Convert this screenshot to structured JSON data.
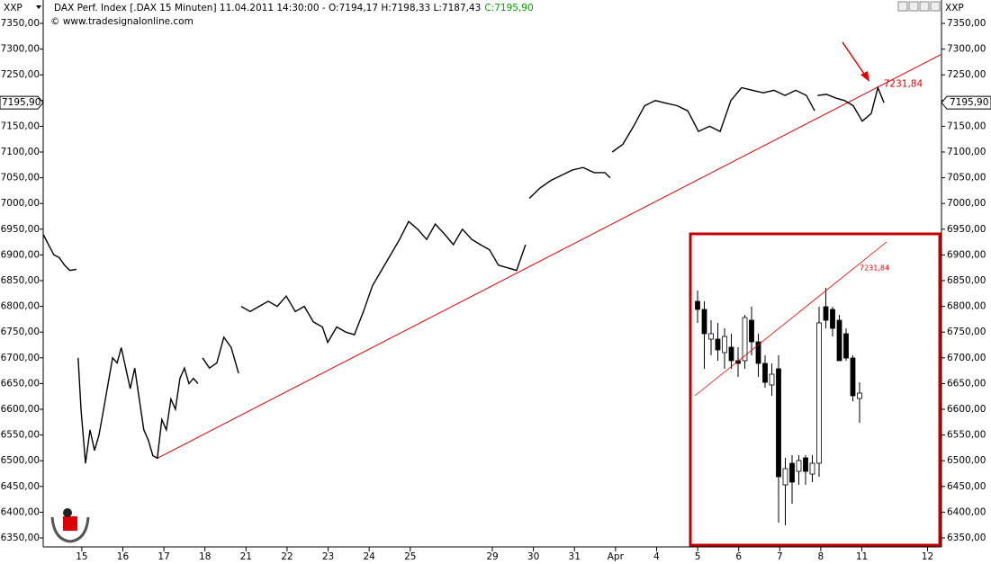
{
  "chart_data": {
    "type": "line",
    "symbol": "XXP",
    "title": "DAX Perf. Index [.DAX  15 Minuten] 11.04.2011 14:30:00 - O:7194,17 H:7198,33 L:7187,43",
    "close_label": "C:7195,90",
    "watermark": "© www.tradesignalonline.com",
    "color": "#000000",
    "x": [
      -0.94,
      -0.81,
      -0.68,
      -0.55,
      -0.42,
      -0.29,
      -0.13,
      null,
      -0.09,
      -0.02,
      0.09,
      0.2,
      0.31,
      0.42,
      0.53,
      0.64,
      0.75,
      0.86,
      0.96,
      1.07,
      1.18,
      1.29,
      1.4,
      1.51,
      1.62,
      1.73,
      1.84,
      1.95,
      2.06,
      2.17,
      2.28,
      2.39,
      2.5,
      2.61,
      2.72,
      2.83,
      null,
      2.94,
      3.11,
      3.29,
      3.46,
      3.64,
      3.82,
      null,
      3.88,
      4.1,
      4.32,
      4.54,
      4.76,
      4.98,
      5.2,
      5.42,
      5.64,
      5.86,
      5.99,
      6.21,
      6.43,
      6.64,
      6.86,
      7.08,
      7.3,
      7.52,
      7.74,
      7.96,
      8.18,
      8.4,
      8.61,
      8.84,
      9.05,
      9.27,
      9.5,
      9.71,
      9.93,
      10.15,
      10.37,
      10.59,
      10.81,
      null,
      10.9,
      11.16,
      11.43,
      11.69,
      11.95,
      12.21,
      12.48,
      12.74,
      12.87,
      null,
      12.92,
      13.18,
      13.44,
      13.71,
      13.97,
      14.23,
      14.5,
      14.76,
      15.02,
      15.29,
      15.55,
      15.81,
      16.07,
      16.34,
      16.6,
      16.86,
      17.13,
      17.39,
      17.65,
      17.85,
      null,
      17.92,
      18.14,
      18.36,
      18.58,
      18.79,
      19.01,
      19.23,
      19.39,
      19.54
    ],
    "values": [
      6940,
      6920,
      6900,
      6895,
      6880,
      6870,
      6872,
      null,
      6700,
      6600,
      6495,
      6560,
      6520,
      6550,
      6600,
      6650,
      6700,
      6690,
      6720,
      6680,
      6640,
      6680,
      6620,
      6560,
      6540,
      6510,
      6505,
      6580,
      6560,
      6620,
      6600,
      6660,
      6680,
      6650,
      6660,
      6650,
      null,
      6700,
      6680,
      6690,
      6740,
      6720,
      6670,
      null,
      6800,
      6790,
      6800,
      6810,
      6800,
      6820,
      6790,
      6800,
      6770,
      6760,
      6730,
      6760,
      6750,
      6745,
      6790,
      6840,
      6870,
      6900,
      6930,
      6965,
      6950,
      6930,
      6960,
      6940,
      6920,
      6950,
      6930,
      6920,
      6910,
      6880,
      6875,
      6870,
      6920,
      null,
      7010,
      7030,
      7045,
      7055,
      7065,
      7070,
      7060,
      7060,
      7050,
      null,
      7100,
      7115,
      7150,
      7190,
      7200,
      7195,
      7190,
      7180,
      7140,
      7150,
      7140,
      7200,
      7225,
      7220,
      7215,
      7220,
      7210,
      7220,
      7210,
      7180,
      null,
      7210,
      7212,
      7205,
      7200,
      7190,
      7160,
      7175,
      7225,
      7196
    ],
    "trendline": {
      "color": "#e00000",
      "x": [
        1.82,
        20.94
      ],
      "values": [
        6504,
        7290
      ]
    },
    "annotation": {
      "value": 7231.84,
      "label": "7231,84",
      "x": 19.4
    },
    "last_price": {
      "value": 7195.9,
      "label": "7195,90"
    },
    "xlim": [
      -0.94,
      20.94
    ],
    "ylim": [
      6330,
      7370
    ],
    "yticks": [
      {
        "value": 6350,
        "label": "6350,00"
      },
      {
        "value": 6400,
        "label": "6400,00"
      },
      {
        "value": 6450,
        "label": "6450,00"
      },
      {
        "value": 6500,
        "label": "6500,00"
      },
      {
        "value": 6550,
        "label": "6550,00"
      },
      {
        "value": 6600,
        "label": "6600,00"
      },
      {
        "value": 6650,
        "label": "6650,00"
      },
      {
        "value": 6700,
        "label": "6700,00"
      },
      {
        "value": 6750,
        "label": "6750,00"
      },
      {
        "value": 6800,
        "label": "6800,00"
      },
      {
        "value": 6850,
        "label": "6850,00"
      },
      {
        "value": 6900,
        "label": "6900,00"
      },
      {
        "value": 6950,
        "label": "6950,00"
      },
      {
        "value": 7000,
        "label": "7000,00"
      },
      {
        "value": 7050,
        "label": "7050,00"
      },
      {
        "value": 7100,
        "label": "7100,00"
      },
      {
        "value": 7150,
        "label": "7150,00"
      },
      {
        "value": 7200,
        "label": "7200,00"
      },
      {
        "value": 7250,
        "label": "7250,00"
      },
      {
        "value": 7300,
        "label": "7300,00"
      },
      {
        "value": 7350,
        "label": "7350,00"
      }
    ],
    "xticks": [
      {
        "value": 0,
        "label": "15"
      },
      {
        "value": 1,
        "label": "16"
      },
      {
        "value": 2,
        "label": "17"
      },
      {
        "value": 3,
        "label": "18"
      },
      {
        "value": 4,
        "label": "21"
      },
      {
        "value": 5,
        "label": "22"
      },
      {
        "value": 6,
        "label": "23"
      },
      {
        "value": 7,
        "label": "24"
      },
      {
        "value": 8,
        "label": "25"
      },
      {
        "value": 10,
        "label": "29"
      },
      {
        "value": 11,
        "label": "30"
      },
      {
        "value": 12,
        "label": "31"
      },
      {
        "value": 13,
        "label": "Apr"
      },
      {
        "value": 14,
        "label": "4"
      },
      {
        "value": 15,
        "label": "5"
      },
      {
        "value": 16,
        "label": "6"
      },
      {
        "value": 17,
        "label": "7"
      },
      {
        "value": 18,
        "label": "8"
      },
      {
        "value": 19,
        "label": "11"
      },
      {
        "value": 20.6,
        "label": "12"
      }
    ],
    "inset": {
      "ylim": [
        7150,
        7240
      ],
      "candles": [
        [
          7235,
          7239,
          7227,
          7232
        ],
        [
          7232,
          7235,
          7210,
          7223
        ],
        [
          7221,
          7228,
          7215,
          7223
        ],
        [
          7221,
          7227,
          7213,
          7217
        ],
        [
          7216,
          7225,
          7210,
          7222
        ],
        [
          7218,
          7223,
          7210,
          7213
        ],
        [
          7213,
          7218,
          7207,
          7212
        ],
        [
          7213,
          7230,
          7210,
          7229
        ],
        [
          7228,
          7233,
          7215,
          7220
        ],
        [
          7220,
          7223,
          7207,
          7212
        ],
        [
          7212,
          7215,
          7203,
          7205
        ],
        [
          7204,
          7212,
          7200,
          7208
        ],
        [
          7210,
          7215,
          7153,
          7170
        ],
        [
          7167,
          7177,
          7152,
          7173
        ],
        [
          7175,
          7178,
          7160,
          7168
        ],
        [
          7172,
          7178,
          7167,
          7176
        ],
        [
          7177,
          7178,
          7167,
          7172
        ],
        [
          7171,
          7178,
          7168,
          7175
        ],
        [
          7175,
          7233,
          7170,
          7227
        ],
        [
          7233,
          7240,
          7225,
          7228
        ],
        [
          7232,
          7233,
          7222,
          7225
        ],
        [
          7228,
          7230,
          7213,
          7213
        ],
        [
          7223,
          7225,
          7213,
          7214
        ],
        [
          7214,
          7215,
          7198,
          7200
        ],
        [
          7199,
          7205,
          7190,
          7201
        ]
      ],
      "trendline": {
        "x": [
          -0.4,
          28
        ],
        "values": [
          7200,
          7257
        ]
      },
      "annotation": {
        "label": "7231,84",
        "x": 24
      }
    }
  }
}
